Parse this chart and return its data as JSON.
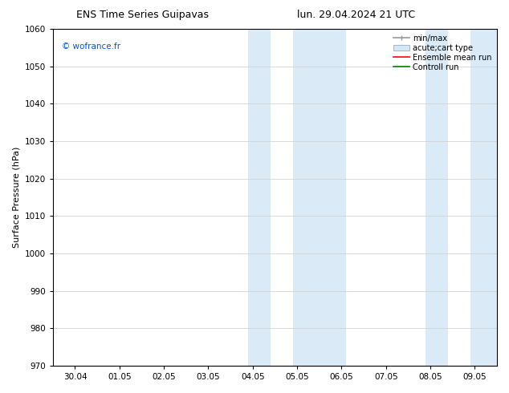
{
  "title_left": "ENS Time Series Guipavas",
  "title_right": "lun. 29.04.2024 21 UTC",
  "ylabel": "Surface Pressure (hPa)",
  "ylim": [
    970,
    1060
  ],
  "yticks": [
    970,
    980,
    990,
    1000,
    1010,
    1020,
    1030,
    1040,
    1050,
    1060
  ],
  "xtick_labels": [
    "30.04",
    "01.05",
    "02.05",
    "03.05",
    "04.05",
    "05.05",
    "06.05",
    "07.05",
    "08.05",
    "09.05"
  ],
  "xtick_positions": [
    0,
    1,
    2,
    3,
    4,
    5,
    6,
    7,
    8,
    9
  ],
  "xlim": [
    -0.5,
    9.5
  ],
  "shaded_bands": [
    {
      "x_start": 3.9,
      "x_end": 4.4
    },
    {
      "x_start": 4.9,
      "x_end": 6.1
    },
    {
      "x_start": 7.9,
      "x_end": 8.4
    },
    {
      "x_start": 8.9,
      "x_end": 9.5
    }
  ],
  "shaded_color": "#daeaf7",
  "watermark_text": "© wofrance.fr",
  "watermark_color": "#0055cc",
  "legend_entries": [
    {
      "label": "min/max",
      "color": "#999999",
      "lw": 1.2,
      "type": "line_with_caps"
    },
    {
      "label": "acute;cart type",
      "color": "#d0e8f8",
      "edgecolor": "#999999",
      "type": "filled_bar"
    },
    {
      "label": "Ensemble mean run",
      "color": "red",
      "lw": 1.2,
      "type": "line"
    },
    {
      "label": "Controll run",
      "color": "green",
      "lw": 1.2,
      "type": "line"
    }
  ],
  "background_color": "#ffffff",
  "grid_color": "#cccccc",
  "tick_label_fontsize": 7.5,
  "axis_label_fontsize": 8,
  "title_fontsize": 9,
  "legend_fontsize": 7
}
